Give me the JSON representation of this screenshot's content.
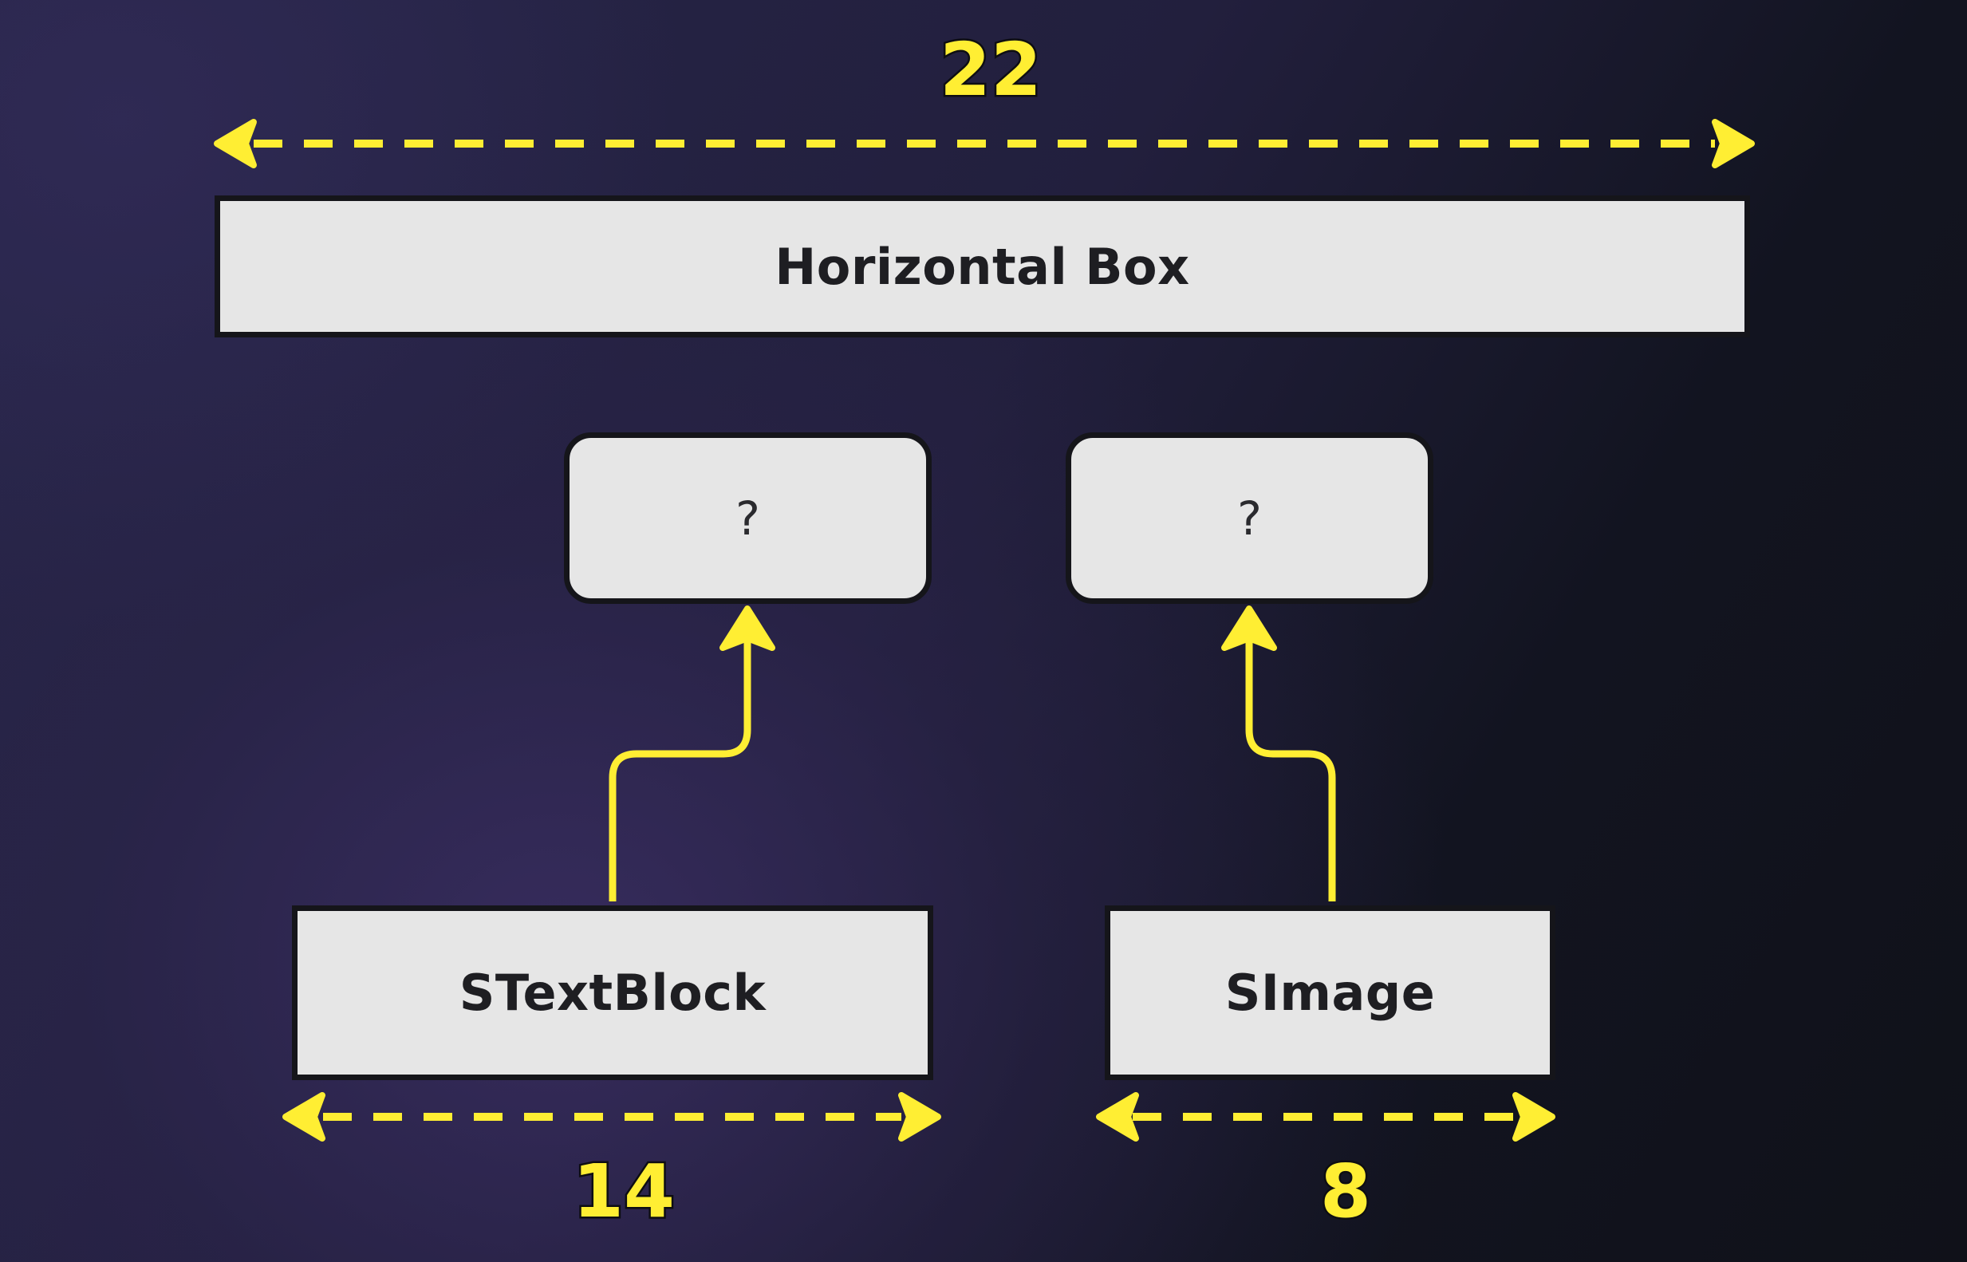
{
  "diagram": {
    "parent": {
      "label": "Horizontal Box",
      "width_value": "22"
    },
    "slots": [
      {
        "label": "?"
      },
      {
        "label": "?"
      }
    ],
    "children": [
      {
        "label": "STextBlock",
        "width_value": "14"
      },
      {
        "label": "SImage",
        "width_value": "8"
      }
    ],
    "colors": {
      "arrow": "#ffee33",
      "box_fill": "#e6e6e6",
      "box_border": "#15151a"
    }
  }
}
